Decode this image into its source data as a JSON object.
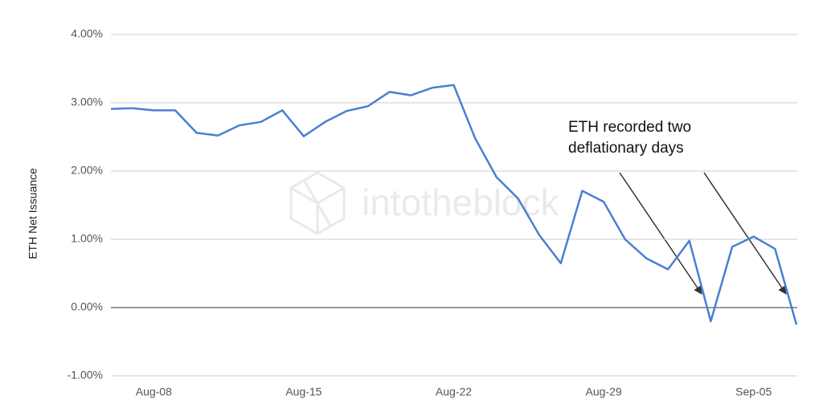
{
  "chart_data": {
    "type": "line",
    "y_label": "ETH Net Issuance",
    "watermark": "intotheblock",
    "annotation": [
      "ETH recorded two",
      "deflationary days"
    ],
    "categories": [
      null,
      null,
      "Aug-08",
      null,
      null,
      null,
      null,
      null,
      null,
      "Aug-15",
      null,
      null,
      null,
      null,
      null,
      null,
      "Aug-22",
      null,
      null,
      null,
      null,
      null,
      null,
      "Aug-29",
      null,
      null,
      null,
      null,
      null,
      null,
      "Sep-05",
      null,
      null
    ],
    "series": [
      {
        "color": "#4a7fd4",
        "values": [
          2.91,
          2.92,
          2.89,
          2.89,
          2.56,
          2.52,
          2.67,
          2.72,
          2.89,
          2.51,
          2.72,
          2.88,
          2.95,
          3.16,
          3.11,
          3.22,
          3.26,
          2.48,
          1.91,
          1.6,
          1.06,
          0.65,
          1.71,
          1.55,
          1.0,
          0.72,
          0.56,
          0.98,
          -0.2,
          0.89,
          1.04,
          0.86,
          -0.25
        ]
      }
    ],
    "ylim": [
      -1,
      4
    ],
    "yticks": [
      {
        "value": -1,
        "label": "-1.00%"
      },
      {
        "value": 0,
        "label": "0.00%"
      },
      {
        "value": 1,
        "label": "1.00%"
      },
      {
        "value": 2,
        "label": "2.00%"
      },
      {
        "value": 3,
        "label": "3.00%"
      },
      {
        "value": 4,
        "label": "4.00%"
      }
    ],
    "grid": true
  }
}
